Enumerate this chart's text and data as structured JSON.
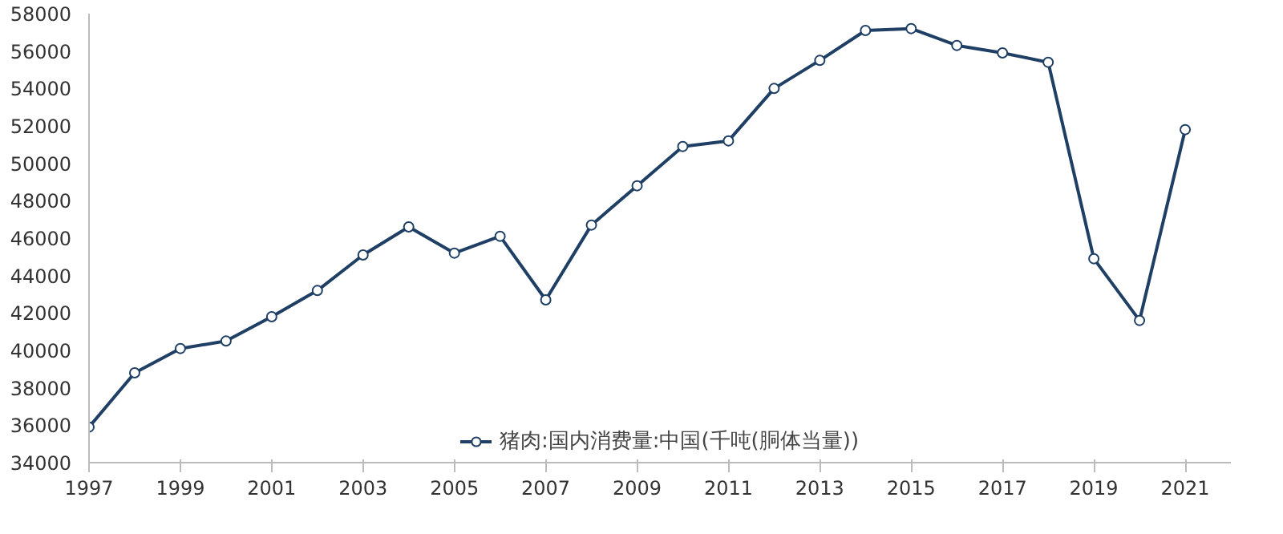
{
  "chart_data": {
    "type": "line",
    "x": [
      1997,
      1998,
      1999,
      2000,
      2001,
      2002,
      2003,
      2004,
      2005,
      2006,
      2007,
      2008,
      2009,
      2010,
      2011,
      2012,
      2013,
      2014,
      2015,
      2016,
      2017,
      2018,
      2019,
      2020,
      2021
    ],
    "series": [
      {
        "name": "猪肉:国内消费量:中国(千吨(胴体当量))",
        "color": "#1f3f64",
        "values": [
          35900,
          38800,
          40100,
          40500,
          41800,
          43200,
          45100,
          46600,
          45200,
          46100,
          42700,
          46700,
          48800,
          50900,
          51200,
          54000,
          55500,
          57100,
          57200,
          56300,
          55900,
          55400,
          44900,
          41600,
          51800
        ]
      }
    ],
    "xlim": [
      1997,
      2022
    ],
    "xticks": [
      1997,
      1999,
      2001,
      2003,
      2005,
      2007,
      2009,
      2011,
      2013,
      2015,
      2017,
      2019,
      2021
    ],
    "ylim": [
      34000,
      58000
    ],
    "yticks": [
      34000,
      36000,
      38000,
      40000,
      42000,
      44000,
      46000,
      48000,
      50000,
      52000,
      54000,
      56000,
      58000
    ],
    "grid": false,
    "legend": "bottom",
    "marker": "circle",
    "line_style": "solid"
  }
}
